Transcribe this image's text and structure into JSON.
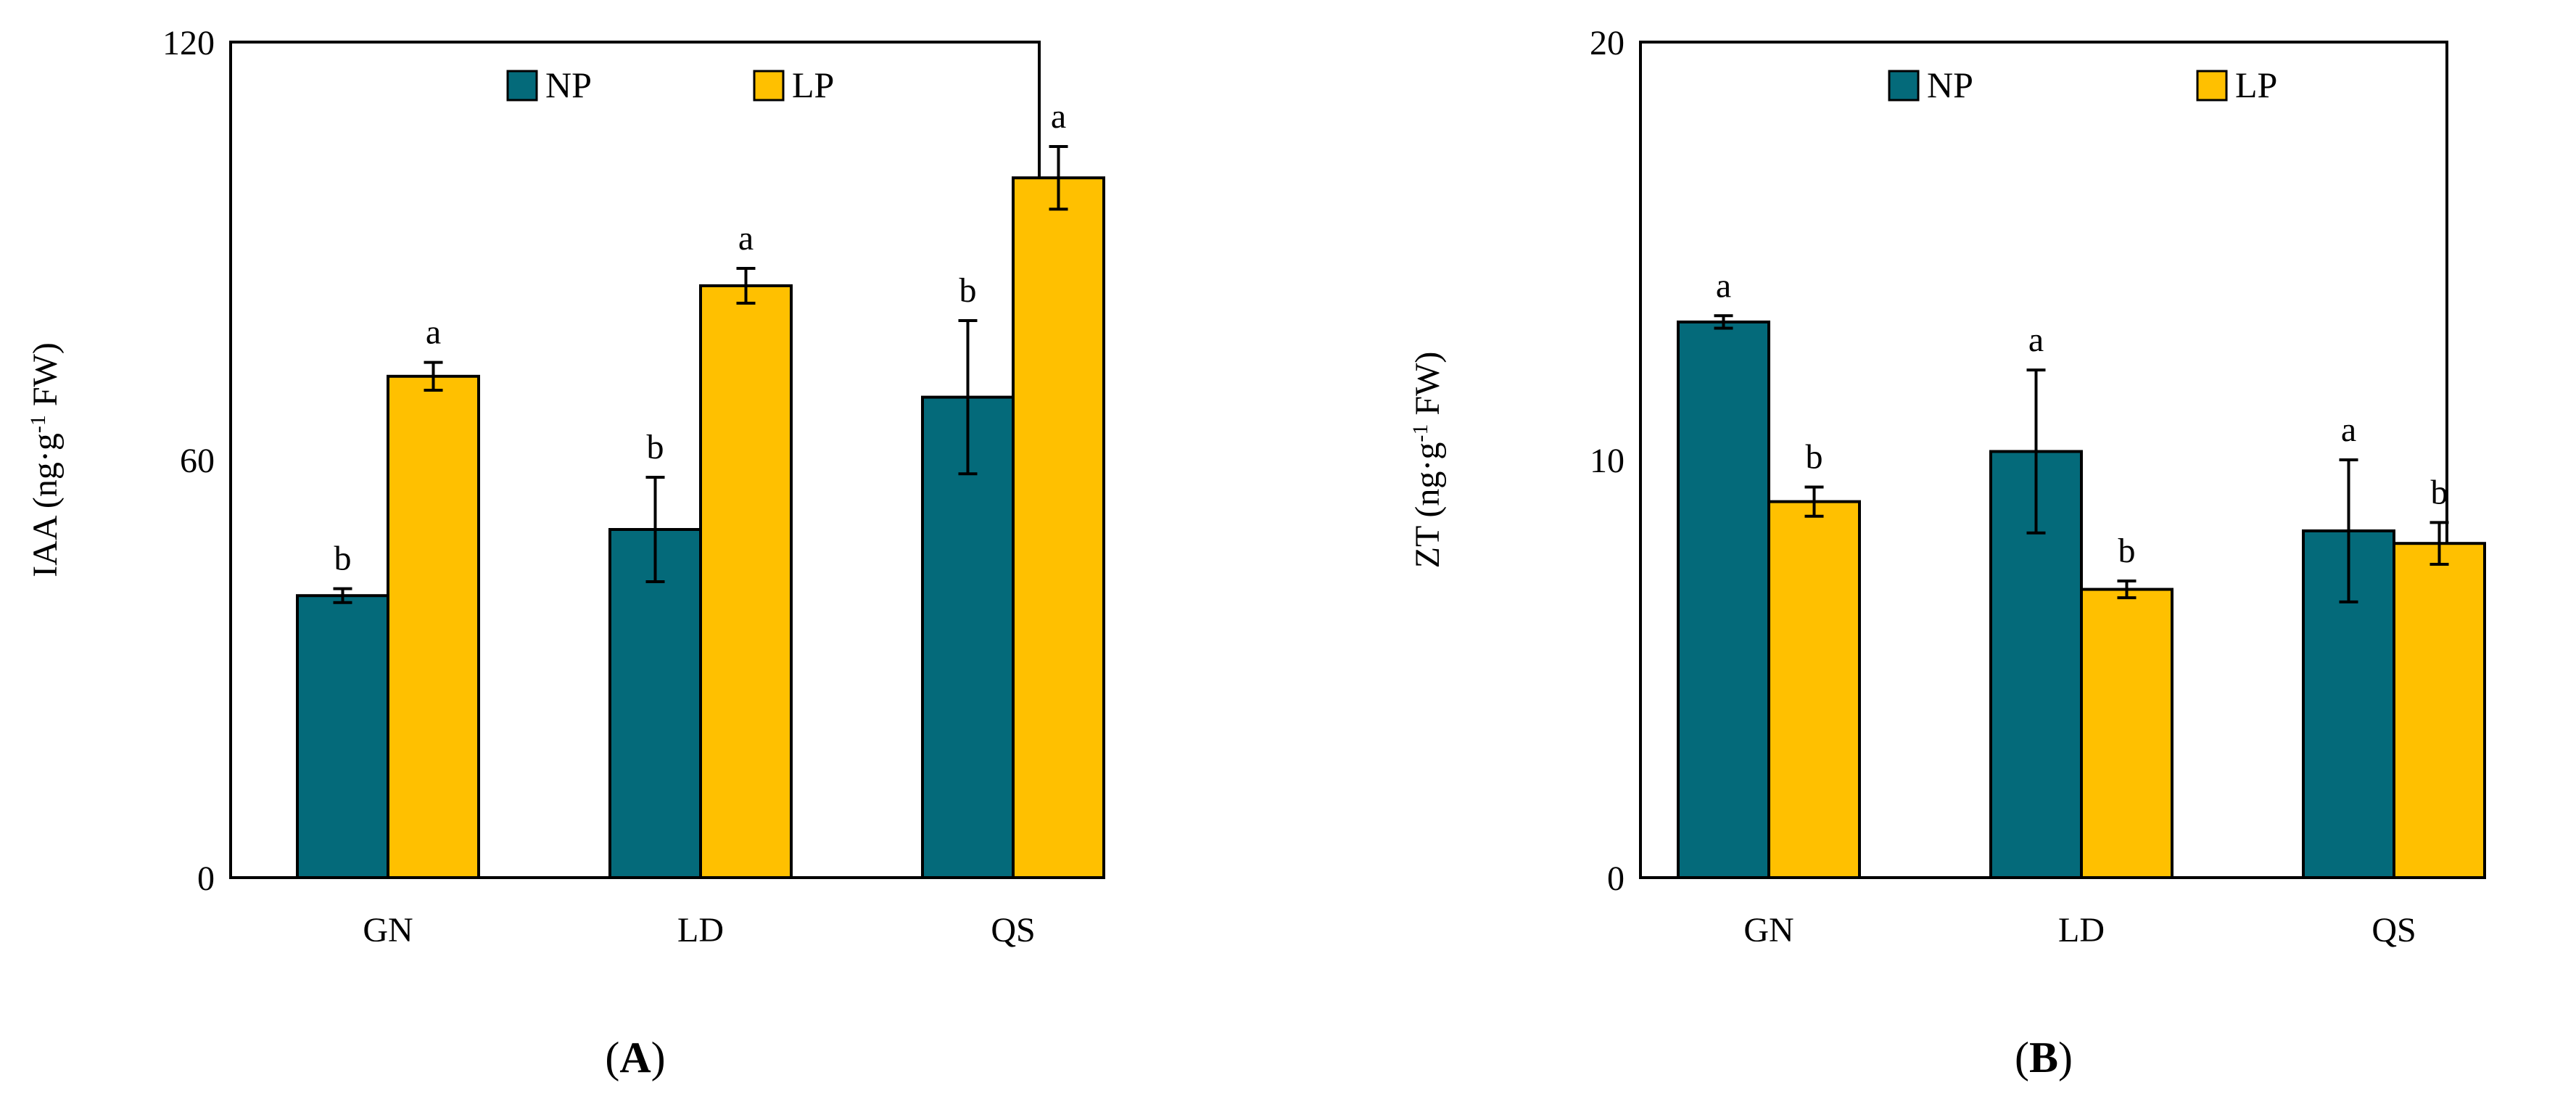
{
  "colors": {
    "NP": "#046A7A",
    "LP": "#FFC000",
    "axis": "#000000",
    "error": "#000000"
  },
  "chart_data": [
    {
      "type": "bar",
      "panel_label": "A",
      "ylabel_main": "IAA (ng·g",
      "ylabel_sup": "-1",
      "ylabel_tail": " FW)",
      "categories": [
        "GN",
        "LD",
        "QS"
      ],
      "ylim": [
        0,
        120
      ],
      "yticks": [
        0,
        60,
        120
      ],
      "legend": [
        "NP",
        "LP"
      ],
      "series": [
        {
          "name": "NP",
          "values": [
            40.5,
            50,
            69
          ],
          "errors": [
            1,
            7.5,
            11
          ],
          "labels": [
            "b",
            "b",
            "b"
          ]
        },
        {
          "name": "LP",
          "values": [
            72,
            85,
            100.5
          ],
          "errors": [
            2,
            2.5,
            4.5
          ],
          "labels": [
            "a",
            "a",
            "a"
          ]
        }
      ]
    },
    {
      "type": "bar",
      "panel_label": "B",
      "ylabel_main": "ZT (ng·g",
      "ylabel_sup": "-1",
      "ylabel_tail": " FW)",
      "categories": [
        "GN",
        "LD",
        "QS"
      ],
      "ylim": [
        0,
        20
      ],
      "yticks": [
        0,
        10,
        20
      ],
      "legend": [
        "NP",
        "LP"
      ],
      "series": [
        {
          "name": "NP",
          "values": [
            13.3,
            10.2,
            8.3
          ],
          "errors": [
            0.15,
            1.95,
            1.7
          ],
          "labels": [
            "a",
            "a",
            "a"
          ]
        },
        {
          "name": "LP",
          "values": [
            9,
            6.9,
            8
          ],
          "errors": [
            0.35,
            0.2,
            0.5
          ],
          "labels": [
            "b",
            "b",
            "b"
          ]
        }
      ]
    }
  ]
}
